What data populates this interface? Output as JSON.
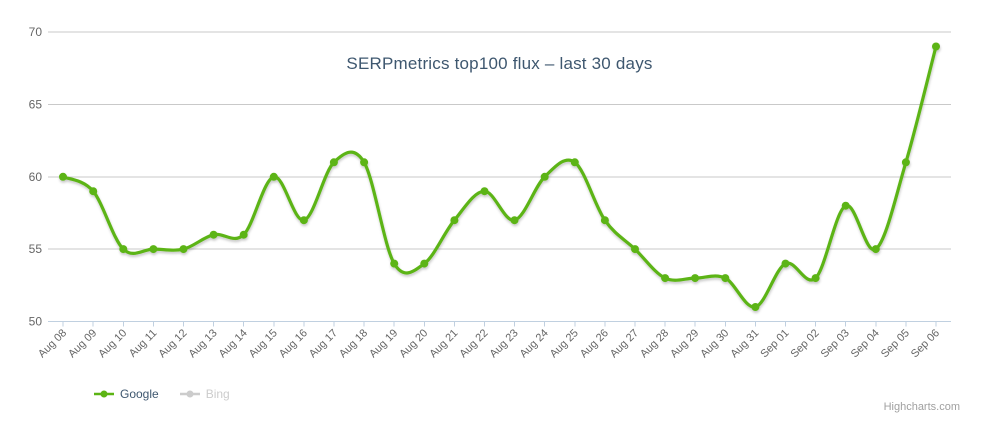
{
  "chart_data": {
    "type": "line",
    "line_shape": "spline",
    "title": "SERPmetrics top100 flux – last 30 days",
    "x": [
      "Aug 08",
      "Aug 09",
      "Aug 10",
      "Aug 11",
      "Aug 12",
      "Aug 13",
      "Aug 14",
      "Aug 15",
      "Aug 16",
      "Aug 17",
      "Aug 18",
      "Aug 19",
      "Aug 20",
      "Aug 21",
      "Aug 22",
      "Aug 23",
      "Aug 24",
      "Aug 25",
      "Aug 26",
      "Aug 27",
      "Aug 28",
      "Aug 29",
      "Aug 30",
      "Aug 31",
      "Sep 01",
      "Sep 02",
      "Sep 03",
      "Sep 04",
      "Sep 05",
      "Sep 06"
    ],
    "series": [
      {
        "name": "Google",
        "color": "#5CB414",
        "visible": true,
        "values": [
          60,
          59,
          55,
          55,
          55,
          56,
          56,
          60,
          57,
          61,
          61,
          54,
          54,
          57,
          59,
          57,
          60,
          61,
          57,
          55,
          53,
          53,
          53,
          51,
          54,
          53,
          58,
          55,
          61,
          69
        ]
      },
      {
        "name": "Bing",
        "color": "#CCCCCC",
        "visible": false,
        "values": []
      }
    ],
    "xlabel": "",
    "ylabel": "",
    "ylim": [
      50,
      70
    ],
    "yticks": [
      50,
      55,
      60,
      65,
      70
    ],
    "grid": true,
    "legend_position": "bottom-left",
    "colors": {
      "grid": "#C9C9C9",
      "axis_line": "#C0D0E0",
      "axis_label": "#666666",
      "title": "#3E576F",
      "legend_label": "#3E576F",
      "credits": "#A0A0A0"
    }
  },
  "credits": {
    "label": "Highcharts.com"
  }
}
